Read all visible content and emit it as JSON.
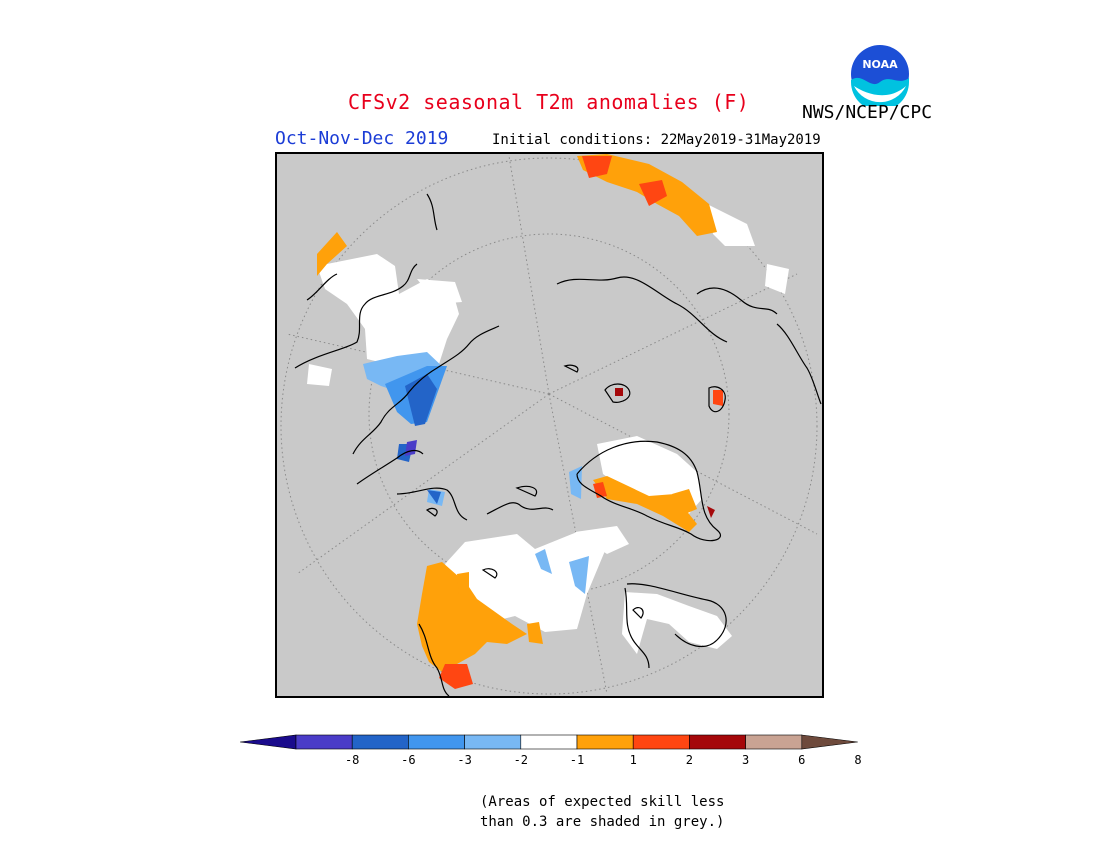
{
  "title": "CFSv2 seasonal T2m anomalies (F)",
  "agency": "NWS/NCEP/CPC",
  "logo_text": "NOAA",
  "season": "Oct-Nov-Dec 2019",
  "initial_conditions": "Initial conditions: 22May2019-31May2019",
  "colorbar": {
    "ticks": [
      "-8",
      "-6",
      "-3",
      "-2",
      "-1",
      "1",
      "2",
      "3",
      "6",
      "8"
    ],
    "colors": [
      "#1a0b8c",
      "#4a3cc8",
      "#2364c8",
      "#4196ee",
      "#78b8f4",
      "#ffffff",
      "#ffa10a",
      "#ff4612",
      "#a5080a",
      "#c9a393",
      "#6e4a3c"
    ]
  },
  "note": {
    "line1": "(Areas of expected skill less",
    "line2": "than 0.3 are shaded in grey.)"
  },
  "colors": {
    "grey": "#c9c9c9",
    "title": "#e8001c",
    "season": "#1b3cd6"
  }
}
